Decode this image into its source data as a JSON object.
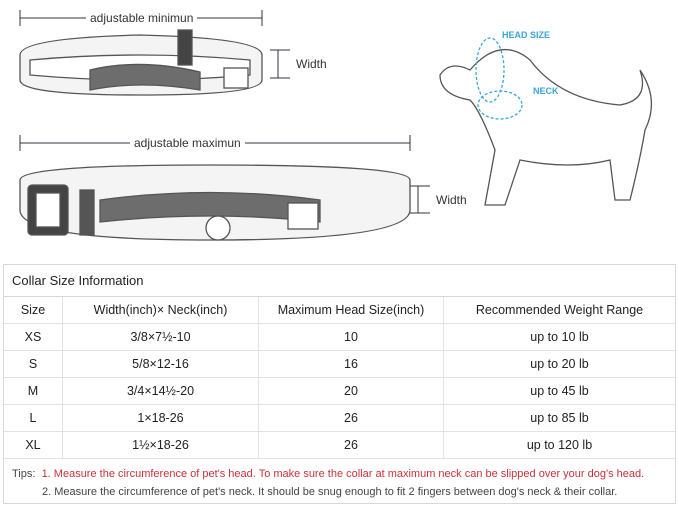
{
  "diagram": {
    "min_label": "adjustable minimun",
    "max_label": "adjustable maximun",
    "width_label": "Width",
    "head_label": "HEAD SIZE",
    "neck_label": "NECK",
    "accent": "#3aa6d8"
  },
  "table": {
    "title": "Collar Size Information",
    "headers": [
      "Size",
      "Width(inch)× Neck(inch)",
      "Maximum Head Size(inch)",
      "Recommended Weight Range"
    ],
    "rows": [
      [
        "XS",
        "3/8×7½-10",
        "10",
        "up to 10 lb"
      ],
      [
        "S",
        "5/8×12-16",
        "16",
        "up to 20 lb"
      ],
      [
        "M",
        "3/4×14½-20",
        "20",
        "up to 45 lb"
      ],
      [
        "L",
        "1×18-26",
        "26",
        "up to 85 lb"
      ],
      [
        "XL",
        "1½×18-26",
        "26",
        "up to 120 lb"
      ]
    ]
  },
  "tips": {
    "prefix": "Tips:",
    "tip1": "1. Measure the circumference of pet's head.  To make sure the collar at maximum neck can be slipped over your dog's head.",
    "tip2": "2. Measure the circumference of pet's neck. It should be snug enough to fit 2 fingers between dog's neck & their collar.",
    "tip1_color": "#c8323c"
  }
}
